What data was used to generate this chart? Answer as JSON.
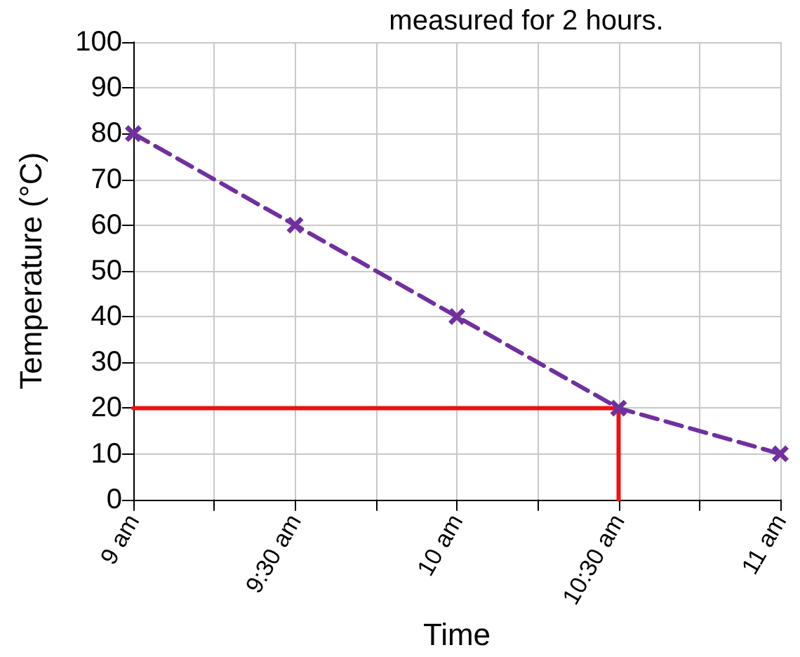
{
  "chart_data": {
    "type": "line",
    "title": "measured for 2 hours.",
    "xlabel": "Time",
    "ylabel": "Temperature (°C)",
    "xlim": [
      9,
      11
    ],
    "xticks": [
      {
        "value": 9,
        "label": "9 am"
      },
      {
        "value": 9.25,
        "label": null
      },
      {
        "value": 9.5,
        "label": "9:30 am"
      },
      {
        "value": 9.75,
        "label": null
      },
      {
        "value": 10,
        "label": "10 am"
      },
      {
        "value": 10.25,
        "label": null
      },
      {
        "value": 10.5,
        "label": "10:30 am"
      },
      {
        "value": 10.75,
        "label": null
      },
      {
        "value": 11,
        "label": "11 am"
      }
    ],
    "ylim": [
      0,
      100
    ],
    "yticks": [
      0,
      10,
      20,
      30,
      40,
      50,
      60,
      70,
      80,
      90,
      100
    ],
    "grid": true,
    "series": [
      {
        "color": "#7030a0",
        "x": [
          9,
          9.5,
          10,
          10.5,
          11
        ],
        "values": [
          80,
          60,
          40,
          20,
          10
        ],
        "marker": "cross",
        "line_style": "dashed"
      },
      {
        "color": "#ee1111",
        "x": [
          9,
          10.5,
          10.5
        ],
        "values": [
          20,
          20,
          0
        ],
        "marker": "none",
        "line_style": "solid"
      }
    ]
  }
}
